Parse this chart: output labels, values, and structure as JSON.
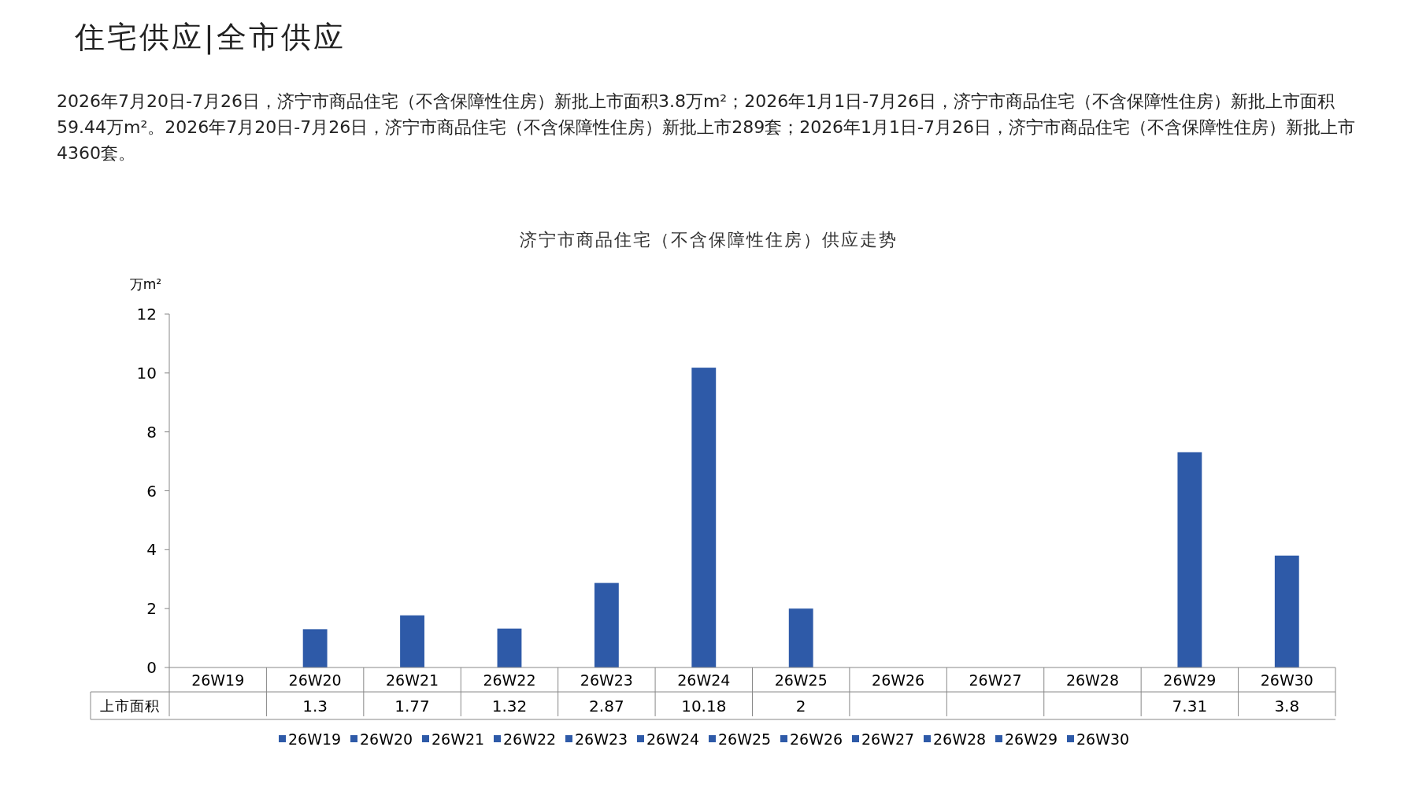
{
  "chart_data": {
    "type": "bar",
    "title": "住宅供应|全市供应",
    "subtitle": "济宁市商品住宅（不含保障性住房）供应走势",
    "ylabel": "万m²",
    "annotations": [
      "2026年7月20日-7月26日，济宁市商品住宅（不含保障性住房）新批上市面积3.8万m²；2026年1月1日-7月26日，济宁市商品住宅（不含保障性住房）新批上市面积59.44万m²。2026年7月20日-7月26日，济宁市商品住宅（不含保障性住房）新批上市289套；2026年1月1日-7月26日，济宁市商品住宅（不含保障性住房）新批上市4360套。"
    ],
    "categories": [
      "26W19",
      "26W20",
      "26W21",
      "26W22",
      "26W23",
      "26W24",
      "26W25",
      "26W26",
      "26W27",
      "26W28",
      "26W29",
      "26W30"
    ],
    "series": [
      {
        "name": "上市面积",
        "color": "#2e5aa8",
        "values": [
          null,
          1.3,
          1.77,
          1.32,
          2.87,
          10.18,
          2,
          null,
          null,
          null,
          7.31,
          3.8
        ]
      }
    ],
    "ylim": [
      0,
      12
    ],
    "yticks": [
      0,
      2,
      4,
      6,
      8,
      10,
      12
    ],
    "data_labels": true,
    "legend": "bottom",
    "grid": false
  }
}
